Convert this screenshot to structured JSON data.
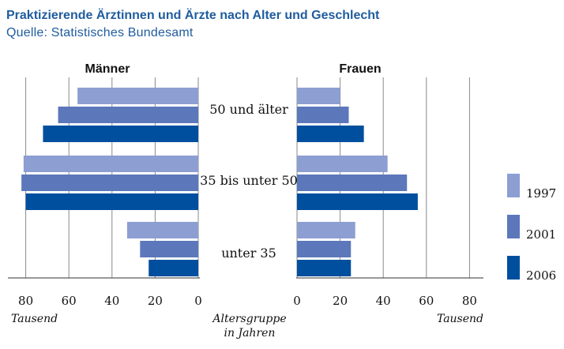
{
  "chart_data": {
    "type": "bar",
    "title": "Praktizierende Ärztinnen und Ärzte nach Alter und Geschlecht",
    "subtitle": "Quelle: Statistisches Bundesamt",
    "center_axis_label": [
      "Altersgruppe",
      "in Jahren"
    ],
    "unit_label": "Tausend",
    "categories": [
      "50 und älter",
      "35 bis unter 50",
      "unter 35"
    ],
    "panels": [
      {
        "name": "Männer",
        "xlim": [
          0,
          90
        ],
        "ticks": [
          80,
          60,
          40,
          20,
          0
        ],
        "series": [
          {
            "name": "1997",
            "values": [
              56,
              81,
              33
            ]
          },
          {
            "name": "2001",
            "values": [
              65,
              82,
              27
            ]
          },
          {
            "name": "2006",
            "values": [
              72,
              80,
              23
            ]
          }
        ]
      },
      {
        "name": "Frauen",
        "xlim": [
          0,
          90
        ],
        "ticks": [
          0,
          20,
          40,
          60,
          80
        ],
        "series": [
          {
            "name": "1997",
            "values": [
              20,
              42,
              27
            ]
          },
          {
            "name": "2001",
            "values": [
              24,
              51,
              25
            ]
          },
          {
            "name": "2006",
            "values": [
              31,
              56,
              25
            ]
          }
        ]
      }
    ],
    "legend": {
      "position": "right",
      "items": [
        {
          "label": "1997",
          "color": "#8c9ed2"
        },
        {
          "label": "2001",
          "color": "#5c78bb"
        },
        {
          "label": "2006",
          "color": "#004f9e"
        }
      ]
    }
  }
}
